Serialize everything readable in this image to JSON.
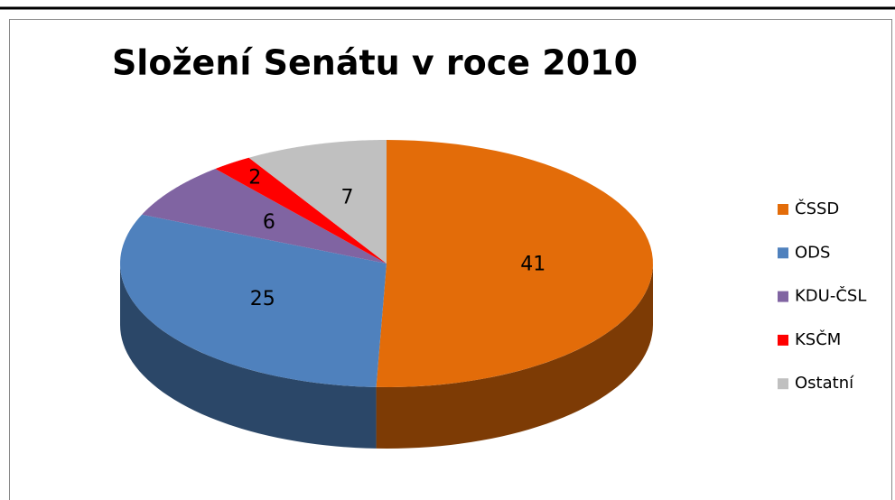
{
  "chart_data": {
    "type": "pie",
    "title": "Složení Senátu v roce 2010",
    "categories": [
      "ČSSD",
      "ODS",
      "KDU-ČSL",
      "KSČM",
      "Ostatní"
    ],
    "values": [
      41,
      25,
      6,
      2,
      7
    ],
    "colors": [
      "#e36c09",
      "#4f81bd",
      "#8064a2",
      "#ff0000",
      "#c0c0c0"
    ],
    "legend": "right",
    "style": "3d"
  }
}
